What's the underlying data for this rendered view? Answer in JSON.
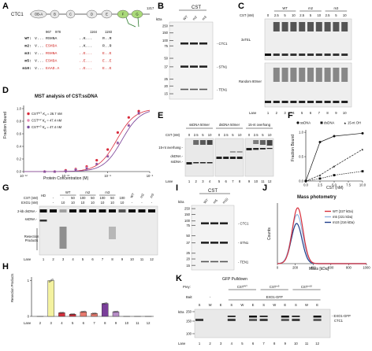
{
  "panelA": {
    "label": "A",
    "protein": "CTC1",
    "end": "1217",
    "domains": [
      "OB-A",
      "B",
      "C",
      "D",
      "E",
      "F",
      "G"
    ],
    "positions": [
      "967",
      "978",
      "1164",
      "1193"
    ],
    "rows": [
      {
        "name": "WT:",
        "seq": "V...",
        "seqA": "RSHNA",
        "seqB": "..K...",
        "seqC": "R..R"
      },
      {
        "name": "m2:",
        "seq": "V...",
        "seqA": "ESHDA",
        "seqB": "..K...",
        "seqC": "R..R"
      },
      {
        "name": "m3:",
        "seq": "V...",
        "seqA": "RSHNA",
        "seqB": "..E...",
        "seqC": "E..E"
      },
      {
        "name": "m5:",
        "seq": "V...",
        "seqA": "ESHDA",
        "seqB": "..E...",
        "seqC": "E..E"
      },
      {
        "name": "m10:",
        "seq": "V...",
        "seqA": "EAAD.A",
        "seqB": "..E...",
        "seqC": "E..E"
      }
    ]
  },
  "panelB": {
    "label": "B",
    "header": "CST",
    "kda": "kDa",
    "lanes": [
      "WT",
      "m2",
      "m3"
    ],
    "markers": [
      "250",
      "150",
      "100",
      "75",
      "50",
      "37",
      "25",
      "20",
      "15"
    ],
    "bands": [
      "CTC1",
      "STN1",
      "TEN1"
    ]
  },
  "panelC": {
    "label": "C",
    "cst_label": "CST (nM)",
    "groups": [
      "WT",
      "m2",
      "m3"
    ],
    "conc": [
      "0",
      "2.5",
      "5",
      "10",
      "2.5",
      "5",
      "10",
      "2.5",
      "5",
      "10"
    ],
    "lane_label": "Lane",
    "lanes": [
      "1",
      "2",
      "3",
      "4",
      "5",
      "6",
      "7",
      "8",
      "9",
      "10"
    ],
    "gel1_label": "3xTEL",
    "gel2_label": "Random 80mer"
  },
  "panelD": {
    "label": "D",
    "title": "MST analysis of CST:ssDNA",
    "ylabel": "Fraction Bound",
    "xlabel": "Protein Concentration (M)",
    "legend": [
      {
        "name": "CST",
        "sup": "WT",
        "kd": "K",
        "kdsub": "d",
        "val": "26.7 nM",
        "color": "#d82b3b"
      },
      {
        "name": "CST",
        "sup": "m2",
        "kd": "K",
        "kdsub": "d",
        "val": "47.4 nM",
        "color": "#e48bb4"
      },
      {
        "name": "CST",
        "sup": "m3",
        "kd": "K",
        "kdsub": "d",
        "val": "47.4 nM",
        "color": "#7a4fa0"
      }
    ],
    "yticks": [
      "0.0",
      "0.2",
      "0.4",
      "0.6",
      "0.8",
      "1.0"
    ],
    "xticks": [
      "10⁻¹²",
      "10⁻¹⁰",
      "10⁻⁸",
      "10⁻⁶"
    ]
  },
  "panelE": {
    "label": "E",
    "cst_label": "CST (nM)",
    "headers": [
      "ssDNA 50mer",
      "dsDNA 50mer",
      "15-nt overhang"
    ],
    "conc": [
      "0",
      "2.5",
      "5",
      "10",
      "0",
      "2.5",
      "5",
      "10",
      "0",
      "2.5",
      "5",
      "10"
    ],
    "side": [
      "15-nt overhang",
      "dsDNA",
      "ssDNA"
    ],
    "lane_label": "Lane",
    "lanes": [
      "1",
      "2",
      "3",
      "4",
      "5",
      "6",
      "7",
      "8",
      "9",
      "10",
      "11",
      "12"
    ]
  },
  "panelF": {
    "label": "F",
    "legend": [
      "ssDNA",
      "dsDNA",
      "15-nt OH"
    ],
    "ylabel": "Fraction Bound",
    "xlabel": "CST (nM)",
    "yticks": [
      "0.0",
      "0.5",
      "1.0"
    ],
    "xticks": [
      "0.0",
      "2.5",
      "5.0",
      "7.5",
      "10.0"
    ]
  },
  "panelG": {
    "label": "G",
    "hd": "HD",
    "groups": [
      "WT",
      "m2",
      "m3"
    ],
    "row1_label": "CST (nM)",
    "row1": [
      "-",
      "-",
      "50",
      "100",
      "50",
      "100",
      "50",
      "100",
      "",
      "",
      ""
    ],
    "row2_label": "EXO1 (nM)",
    "row2": [
      "-",
      "10",
      "10",
      "10",
      "10",
      "10",
      "10",
      "10",
      "-",
      "-",
      "-"
    ],
    "right_groups": [
      "WT",
      "m2",
      "m3"
    ],
    "side": [
      "2-kb dsDNA",
      "ssDNA",
      "Resection Products"
    ],
    "lane_label": "Lane",
    "lanes": [
      "1",
      "2",
      "3",
      "4",
      "5",
      "6",
      "7",
      "8",
      "9",
      "10",
      "11",
      "12"
    ]
  },
  "panelH": {
    "label": "H",
    "ylabel": "Resection Products",
    "yticks": [
      "0",
      "1"
    ],
    "lane_label": "Lane",
    "lanes": [
      "2",
      "3",
      "4",
      "5",
      "6",
      "7",
      "8",
      "9",
      "10",
      "11",
      "12"
    ]
  },
  "panelI": {
    "label": "I",
    "header": "CST",
    "kda": "kDa",
    "lanes": [
      "WT",
      "m5",
      "m10"
    ],
    "markers": [
      "250",
      "150",
      "100",
      "75",
      "50",
      "37",
      "25",
      "20",
      "15"
    ],
    "bands": [
      "CTC1",
      "STN1",
      "TEN1"
    ]
  },
  "panelJ": {
    "label": "J",
    "title": "Mass photometry",
    "ylabel": "Counts",
    "xlabel": "Mass [kDa]",
    "xticks": [
      "0",
      "200",
      "400",
      "600",
      "800",
      "1000"
    ],
    "legend": [
      {
        "text": "WT (227 kDa)",
        "color": "#d8303c"
      },
      {
        "text": "m5 (221 kDa)",
        "color": "#93b6e0"
      },
      {
        "text": "m10 (216 kDa)",
        "color": "#1f3f8a"
      }
    ]
  },
  "panelK": {
    "label": "K",
    "title": "GFP Pulldown",
    "prey_label": "Prey:",
    "bait_label": "Bait:",
    "prey": [
      "CST",
      "CST",
      "CST"
    ],
    "prey_sup": [
      "WT",
      "m5",
      "m10"
    ],
    "bait": [
      "-",
      "EXO1-GFP"
    ],
    "cols": [
      "S",
      "W",
      "E",
      "S",
      "W",
      "E",
      "S",
      "W",
      "E",
      "S",
      "W",
      "E"
    ],
    "kda": "kDa",
    "markers": [
      "250",
      "150",
      "100"
    ],
    "bands": [
      "EXO1-GFP",
      "CTC1"
    ],
    "lane_label": "Lane",
    "lanes": [
      "1",
      "2",
      "3",
      "4",
      "5",
      "6",
      "7",
      "8",
      "9",
      "10",
      "11",
      "12"
    ]
  },
  "chart_data": [
    {
      "type": "scatter",
      "panel": "D",
      "title": "MST analysis of CST:ssDNA",
      "xlabel": "Protein Concentration (M)",
      "ylabel": "Fraction Bound",
      "xscale": "log",
      "xlim": [
        1e-12,
        1e-06
      ],
      "ylim": [
        0,
        1.05
      ],
      "series": [
        {
          "name": "CST WT",
          "kd_nM": 26.7,
          "x": [
            1e-11,
            3e-11,
            1e-10,
            3e-10,
            1e-09,
            3e-09,
            1e-08,
            3e-08,
            1e-07,
            3e-07
          ],
          "y": [
            0.0,
            0.0,
            0.02,
            0.04,
            0.08,
            0.18,
            0.35,
            0.62,
            0.86,
            0.96
          ]
        },
        {
          "name": "CST m2",
          "kd_nM": 47.4,
          "x": [
            1e-11,
            3e-11,
            1e-10,
            3e-10,
            1e-09,
            3e-09,
            1e-08,
            3e-08,
            1e-07,
            3e-07
          ],
          "y": [
            0.0,
            0.0,
            0.01,
            0.03,
            0.06,
            0.12,
            0.25,
            0.45,
            0.74,
            0.92
          ]
        },
        {
          "name": "CST m3",
          "kd_nM": 47.4,
          "x": [
            1e-11,
            3e-11,
            1e-10,
            3e-10,
            1e-09,
            3e-09,
            1e-08,
            3e-08,
            1e-07,
            3e-07
          ],
          "y": [
            0.0,
            0.0,
            0.01,
            0.03,
            0.05,
            0.12,
            0.24,
            0.46,
            0.73,
            0.93
          ]
        }
      ]
    },
    {
      "type": "line",
      "panel": "F",
      "xlabel": "CST (nM)",
      "ylabel": "Fraction Bound",
      "xlim": [
        0,
        10
      ],
      "ylim": [
        0,
        1.05
      ],
      "x": [
        0,
        2.5,
        5,
        10
      ],
      "series": [
        {
          "name": "ssDNA",
          "values": [
            0.0,
            0.8,
            0.92,
            0.98
          ]
        },
        {
          "name": "dsDNA",
          "values": [
            0.0,
            0.05,
            0.12,
            0.2
          ]
        },
        {
          "name": "15-nt OH",
          "values": [
            0.0,
            0.12,
            0.3,
            0.65
          ]
        }
      ]
    },
    {
      "type": "bar",
      "panel": "H",
      "ylabel": "Resection Products",
      "ylim": [
        0,
        1.1
      ],
      "categories": [
        "2",
        "3",
        "4",
        "5",
        "6",
        "7",
        "8",
        "9",
        "10",
        "11",
        "12"
      ],
      "values": [
        0.0,
        1.0,
        0.1,
        0.06,
        0.13,
        0.08,
        0.36,
        0.13,
        0.0,
        0.0,
        0.0
      ],
      "colors": [
        "#ffffff",
        "#f4f2a0",
        "#d8303c",
        "#d8303c",
        "#e87a6e",
        "#e87a6e",
        "#7a3f9a",
        "#b88ec8",
        "#ffffff",
        "#ffffff",
        "#ffffff"
      ]
    },
    {
      "type": "line",
      "panel": "J",
      "title": "Mass photometry",
      "xlabel": "Mass [kDa]",
      "ylabel": "Counts",
      "xlim": [
        0,
        1000
      ],
      "series": [
        {
          "name": "WT (227 kDa)",
          "peak": 227,
          "sigma": 60,
          "amp": 1.0
        },
        {
          "name": "m5 (221 kDa)",
          "peak": 221,
          "sigma": 62,
          "amp": 0.88
        },
        {
          "name": "m10 (216 kDa)",
          "peak": 216,
          "sigma": 60,
          "amp": 0.72
        }
      ]
    }
  ]
}
